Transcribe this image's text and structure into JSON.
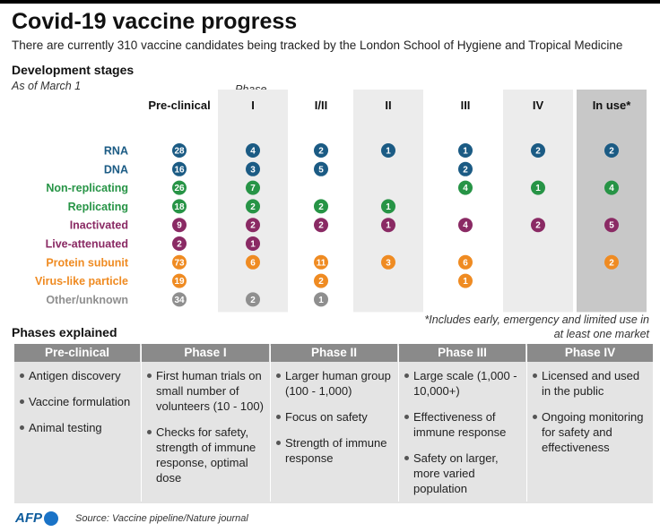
{
  "header": {
    "title": "Covid-19 vaccine progress",
    "subtitle": "There are currently 310 vaccine candidates being tracked by the London School of Hygiene and Tropical Medicine"
  },
  "matrix_section": {
    "title": "Development stages",
    "as_of": "As of March 1",
    "phase_label": "Phase",
    "footnote": "*Includes early, emergency and limited use in at least one market"
  },
  "chart_data": {
    "type": "table",
    "columns": [
      "Pre-clinical",
      "I",
      "I/II",
      "II",
      "III",
      "IV",
      "In use*"
    ],
    "rows": [
      {
        "name": "RNA",
        "color": "#1b5b84",
        "values": [
          28,
          4,
          2,
          1,
          1,
          2,
          2
        ]
      },
      {
        "name": "DNA",
        "color": "#1b5b84",
        "values": [
          16,
          3,
          5,
          null,
          2,
          null,
          null
        ]
      },
      {
        "name": "Non-replicating",
        "color": "#279446",
        "values": [
          26,
          7,
          null,
          null,
          4,
          1,
          4
        ]
      },
      {
        "name": "Replicating",
        "color": "#279446",
        "values": [
          18,
          2,
          2,
          1,
          null,
          null,
          null
        ]
      },
      {
        "name": "Inactivated",
        "color": "#8a2a64",
        "values": [
          9,
          2,
          2,
          1,
          4,
          2,
          5
        ]
      },
      {
        "name": "Live-attenuated",
        "color": "#8a2a64",
        "values": [
          2,
          1,
          null,
          null,
          null,
          null,
          null
        ]
      },
      {
        "name": "Protein subunit",
        "color": "#ef8b22",
        "values": [
          73,
          6,
          11,
          3,
          6,
          null,
          2
        ]
      },
      {
        "name": "Virus-like particle",
        "color": "#ef8b22",
        "values": [
          19,
          null,
          2,
          null,
          1,
          null,
          null
        ]
      },
      {
        "name": "Other/unknown",
        "color": "#8f8f8f",
        "values": [
          34,
          2,
          1,
          null,
          null,
          null,
          null
        ]
      }
    ]
  },
  "phases_section": {
    "title": "Phases explained",
    "columns": [
      {
        "header": "Pre-clinical",
        "items": [
          "Antigen discovery",
          "Vaccine formulation",
          "Animal testing"
        ]
      },
      {
        "header": "Phase I",
        "items": [
          "First human trials on small number of volunteers (10 - 100)",
          "Checks for safety, strength of immune response, optimal dose"
        ]
      },
      {
        "header": "Phase II",
        "items": [
          "Larger human group (100 - 1,000)",
          "Focus on safety",
          "Strength of immune response"
        ]
      },
      {
        "header": "Phase III",
        "items": [
          "Large scale (1,000 - 10,000+)",
          "Effectiveness of immune response",
          "Safety on larger, more varied population"
        ]
      },
      {
        "header": "Phase IV",
        "items": [
          "Licensed and used in the public",
          "Ongoing monitoring for safety and effectiveness"
        ]
      }
    ]
  },
  "footer": {
    "logo": "AFP",
    "source": "Source: Vaccine pipeline/Nature journal"
  }
}
